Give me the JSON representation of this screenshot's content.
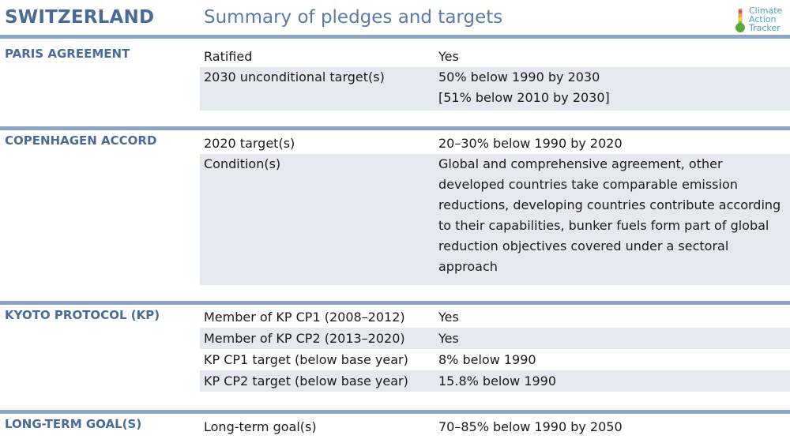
{
  "header": {
    "country": "SWITZERLAND",
    "subtitle": "Summary of pledges and targets",
    "logo": {
      "line1": "Climate",
      "line2": "Action",
      "line3": "Tracker"
    },
    "accent_color": "#8ba4c3",
    "title_color": "#4a6b95"
  },
  "sections": {
    "paris": {
      "title": "PARIS AGREEMENT",
      "rows": [
        {
          "label": "Ratified",
          "values": [
            "Yes"
          ]
        },
        {
          "label": "2030 unconditional target(s)",
          "values": [
            "50% below 1990 by 2030",
            "[51% below 2010 by 2030]"
          ]
        }
      ]
    },
    "copenhagen": {
      "title": "COPENHAGEN ACCORD",
      "rows": [
        {
          "label": "2020 target(s)",
          "values": [
            "20–30% below 1990 by 2020"
          ]
        },
        {
          "label": "Condition(s)",
          "values": [
            "Global and comprehensive agreement, other developed countries take comparable emission reductions, developing countries contribute according to their capabilities, bunker fuels form part of global reduction objectives covered under a sectoral approach"
          ]
        }
      ]
    },
    "kyoto": {
      "title": "KYOTO PROTOCOL (KP)",
      "rows": [
        {
          "label": "Member of KP CP1 (2008–2012)",
          "values": [
            "Yes"
          ]
        },
        {
          "label": "Member of KP CP2 (2013–2020)",
          "values": [
            "Yes"
          ]
        },
        {
          "label": "KP CP1 target (below base year)",
          "values": [
            "8% below 1990"
          ]
        },
        {
          "label": "KP CP2 target (below base year)",
          "values": [
            "15.8% below 1990"
          ]
        }
      ]
    },
    "longterm": {
      "title": "LONG-TERM GOAL(S)",
      "rows": [
        {
          "label": "Long-term goal(s)",
          "values": [
            "70–85% below 1990 by 2050"
          ]
        }
      ]
    }
  }
}
